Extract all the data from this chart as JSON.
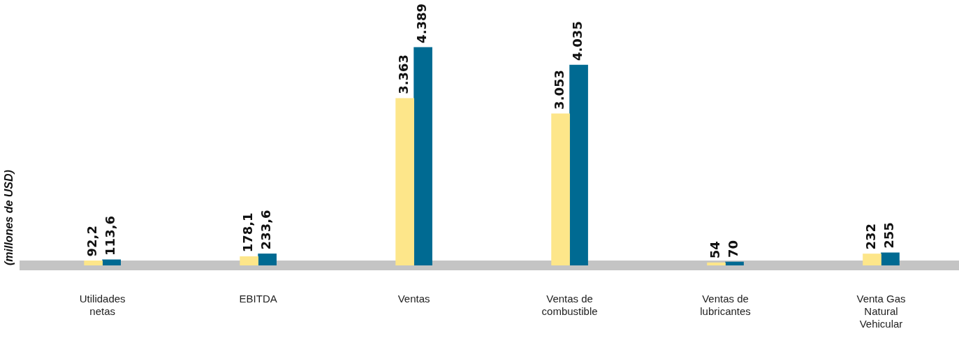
{
  "chart_data": {
    "type": "bar",
    "ylabel": "(millones de USD)",
    "categories": [
      "Utilidades netas",
      "EBITDA",
      "Ventas",
      "Ventas de combustible",
      "Ventas de lubricantes",
      "Venta Gas Natural Vehicular"
    ],
    "series": [
      {
        "color": "#fde68a",
        "values": [
          92.2,
          178.1,
          3363,
          3053,
          54,
          232
        ],
        "value_labels": [
          "92,2",
          "178,1",
          "3.363",
          "3.053",
          "54",
          "232"
        ]
      },
      {
        "color": "#006a92",
        "values": [
          113.6,
          233.6,
          4389,
          4035,
          70,
          255
        ],
        "value_labels": [
          "113,6",
          "233,6",
          "4.389",
          "4.035",
          "70",
          "255"
        ]
      }
    ],
    "grid": false,
    "legend": false
  }
}
